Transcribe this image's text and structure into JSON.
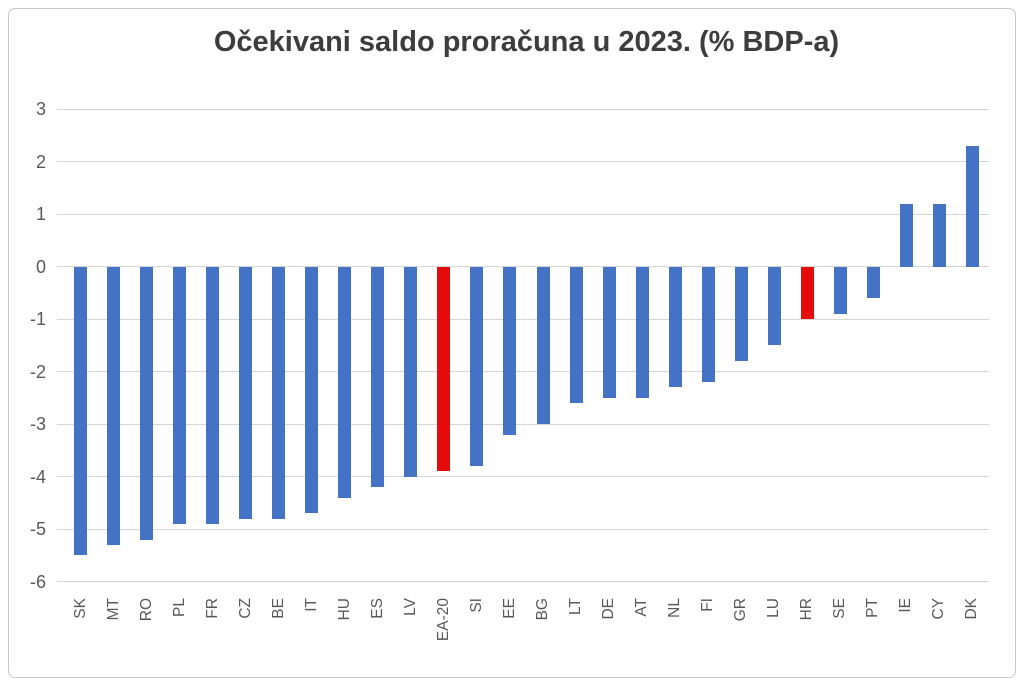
{
  "chart_data": {
    "type": "bar",
    "title": "Očekivani saldo proračuna u 2023. (% BDP-a)",
    "xlabel": "",
    "ylabel": "",
    "categories": [
      "SK",
      "MT",
      "RO",
      "PL",
      "FR",
      "CZ",
      "BE",
      "IT",
      "HU",
      "ES",
      "LV",
      "EA-20",
      "SI",
      "EE",
      "BG",
      "LT",
      "DE",
      "AT",
      "NL",
      "FI",
      "GR",
      "LU",
      "HR",
      "SE",
      "PT",
      "IE",
      "CY",
      "DK"
    ],
    "values": [
      -5.5,
      -5.3,
      -5.2,
      -4.9,
      -4.9,
      -4.8,
      -4.8,
      -4.7,
      -4.4,
      -4.2,
      -4.0,
      -3.9,
      -3.8,
      -3.2,
      -3.0,
      -2.6,
      -2.5,
      -2.5,
      -2.3,
      -2.2,
      -1.8,
      -1.5,
      -1.0,
      -0.9,
      -0.6,
      1.2,
      1.2,
      2.3
    ],
    "highlighted_categories": [
      "EA-20",
      "HR"
    ],
    "yticks": [
      3,
      2,
      1,
      0,
      -1,
      -2,
      -3,
      -4,
      -5,
      -6
    ],
    "ylim": [
      -6,
      3
    ],
    "grid": "horizontal",
    "legend": "none",
    "series_color": "#4472c4",
    "highlight_color": "#e60b0b",
    "gridline_color": "#d6d6d6",
    "axis_text_color": "#595959",
    "title_color": "#3d3d3d"
  }
}
